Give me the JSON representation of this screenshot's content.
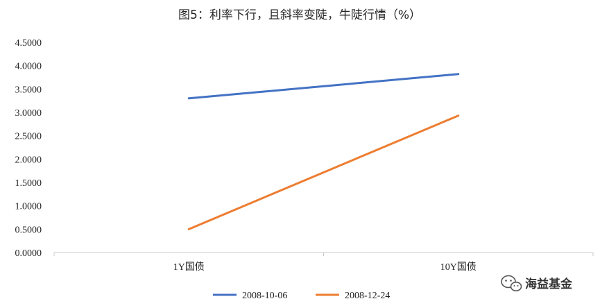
{
  "chart_data": {
    "type": "line",
    "title": "图5：利率下行，且斜率变陡，牛陡行情（%）",
    "categories": [
      "1Y国债",
      "10Y国债"
    ],
    "series": [
      {
        "name": "2008-10-06",
        "values": [
          3.3,
          3.82
        ],
        "color": "#4472C4"
      },
      {
        "name": "2008-12-24",
        "values": [
          0.5,
          2.93
        ],
        "color": "#ED7D31"
      }
    ],
    "ylim": [
      0,
      4.5
    ],
    "yticks": [
      "0.0000",
      "0.5000",
      "1.0000",
      "1.5000",
      "2.0000",
      "2.5000",
      "3.0000",
      "3.5000",
      "4.0000",
      "4.5000"
    ],
    "grid": false,
    "legend": "bottom"
  },
  "watermark": {
    "text": "海益基金",
    "icon": "wechat-icon"
  }
}
